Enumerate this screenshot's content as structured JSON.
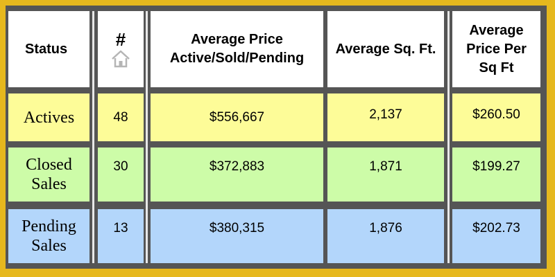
{
  "table": {
    "headers": {
      "status": "Status",
      "count": "#",
      "avg_price": "Average Price Active/Sold/Pending",
      "avg_sqft": "Average Sq. Ft.",
      "avg_price_per_sqft": "Average Price Per Sq Ft"
    },
    "count_icon": "home-icon",
    "rows": [
      {
        "status": "Actives",
        "count": "48",
        "avg_price": "$556,667",
        "avg_sqft": "2,137",
        "avg_price_per_sqft": "$260.50",
        "color": "#fdfc98"
      },
      {
        "status": "Closed Sales",
        "count": "30",
        "avg_price": "$372,883",
        "avg_sqft": "1,871",
        "avg_price_per_sqft": "$199.27",
        "color": "#cdfca8"
      },
      {
        "status": "Pending Sales",
        "count": "13",
        "avg_price": "$380,315",
        "avg_sqft": "1,876",
        "avg_price_per_sqft": "$202.73",
        "color": "#b3d6fb"
      }
    ]
  },
  "colors": {
    "outer_border": "#e6b81e",
    "grid": "#555555",
    "header_bg": "#ffffff"
  }
}
